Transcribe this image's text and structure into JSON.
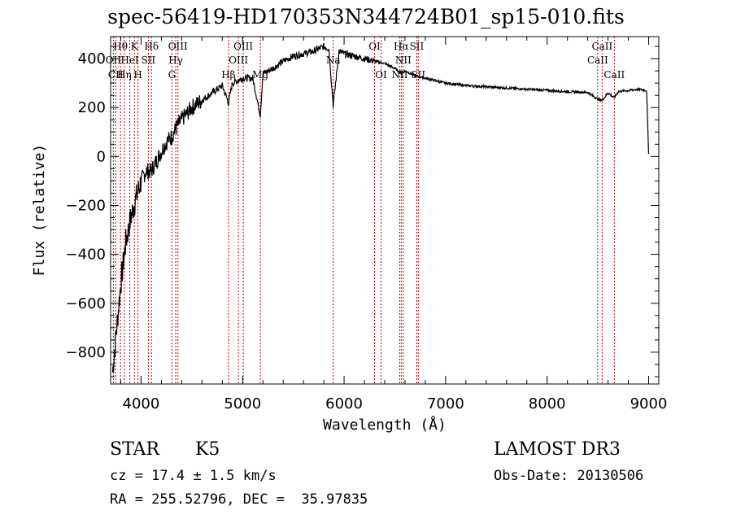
{
  "title": "spec-56419-HD170353N344724B01_sp15-010.fits",
  "chart_data": {
    "type": "line",
    "xlabel": "Wavelength (Å)",
    "ylabel": "Flux (relative)",
    "xlim": [
      3700,
      9100
    ],
    "ylim": [
      -930,
      490
    ],
    "xticks": [
      4000,
      5000,
      6000,
      7000,
      8000,
      9000
    ],
    "yticks": [
      -800,
      -600,
      -400,
      -200,
      0,
      200,
      400
    ],
    "line_color": "#000000",
    "marker_color": "#cc0000",
    "series": [
      {
        "x": [
          3720,
          3760,
          3800,
          3850,
          3900,
          3950,
          4000,
          4050,
          4100,
          4150,
          4200,
          4250,
          4300,
          4350,
          4400,
          4500,
          4600,
          4700,
          4800,
          4861,
          4900,
          5000,
          5100,
          5175,
          5200,
          5300,
          5400,
          5500,
          5600,
          5700,
          5800,
          5850,
          5893,
          5950,
          6000,
          6100,
          6200,
          6300,
          6400,
          6500,
          6563,
          6600,
          6700,
          6800,
          6900,
          7000,
          7200,
          7400,
          7600,
          7800,
          8000,
          8200,
          8400,
          8498,
          8542,
          8600,
          8662,
          8700,
          8800,
          8900,
          8980,
          9000
        ],
        "y": [
          -880,
          -700,
          -520,
          -350,
          -250,
          -170,
          -100,
          -60,
          -60,
          -20,
          20,
          60,
          80,
          120,
          150,
          200,
          230,
          260,
          290,
          220,
          300,
          320,
          320,
          170,
          340,
          360,
          390,
          410,
          420,
          430,
          450,
          440,
          210,
          430,
          420,
          410,
          400,
          390,
          380,
          360,
          340,
          350,
          330,
          320,
          310,
          300,
          290,
          285,
          280,
          275,
          270,
          265,
          262,
          235,
          230,
          260,
          240,
          265,
          270,
          275,
          270,
          10
        ]
      }
    ],
    "line_markers": [
      {
        "wavelength": 3727,
        "label": "OII",
        "row": 1
      },
      {
        "wavelength": 3750,
        "label": "CII",
        "row": 2
      },
      {
        "wavelength": 3797,
        "label": "Hθ",
        "row": 0
      },
      {
        "wavelength": 3835,
        "label": "Hη",
        "row": 2
      },
      {
        "wavelength": 3889,
        "label": "HeI",
        "row": 1
      },
      {
        "wavelength": 3934,
        "label": "K",
        "row": 0
      },
      {
        "wavelength": 3969,
        "label": "H",
        "row": 2
      },
      {
        "wavelength": 4072,
        "label": "SII",
        "row": 1
      },
      {
        "wavelength": 4102,
        "label": "Hδ",
        "row": 0
      },
      {
        "wavelength": 4304,
        "label": "G",
        "row": 2
      },
      {
        "wavelength": 4341,
        "label": "Hγ",
        "row": 1
      },
      {
        "wavelength": 4363,
        "label": "OIII",
        "row": 0
      },
      {
        "wavelength": 4861,
        "label": "Hβ",
        "row": 2
      },
      {
        "wavelength": 4959,
        "label": "OIII",
        "row": 1
      },
      {
        "wavelength": 5007,
        "label": "OIII",
        "row": 0
      },
      {
        "wavelength": 5175,
        "label": "Mg",
        "row": 2
      },
      {
        "wavelength": 5893,
        "label": "Na",
        "row": 1
      },
      {
        "wavelength": 6300,
        "label": "OI",
        "row": 0
      },
      {
        "wavelength": 6364,
        "label": "OI",
        "row": 2
      },
      {
        "wavelength": 6548,
        "label": "NII",
        "row": 2
      },
      {
        "wavelength": 6563,
        "label": "Hα",
        "row": 0
      },
      {
        "wavelength": 6583,
        "label": "NII",
        "row": 1
      },
      {
        "wavelength": 6716,
        "label": "SII",
        "row": 0
      },
      {
        "wavelength": 6731,
        "label": "SII",
        "row": 2
      },
      {
        "wavelength": 8498,
        "label": "CaII",
        "row": 1
      },
      {
        "wavelength": 8542,
        "label": "CaII",
        "row": 0
      },
      {
        "wavelength": 8662,
        "label": "CaII",
        "row": 2
      }
    ]
  },
  "info": {
    "class": "STAR",
    "subclass": "K5",
    "survey": "LAMOST DR3",
    "cz": "cz = 17.4 ± 1.5 km/s",
    "obs_date": "Obs-Date: 20130506",
    "radec": "RA = 255.52796, DEC =  35.97835"
  }
}
